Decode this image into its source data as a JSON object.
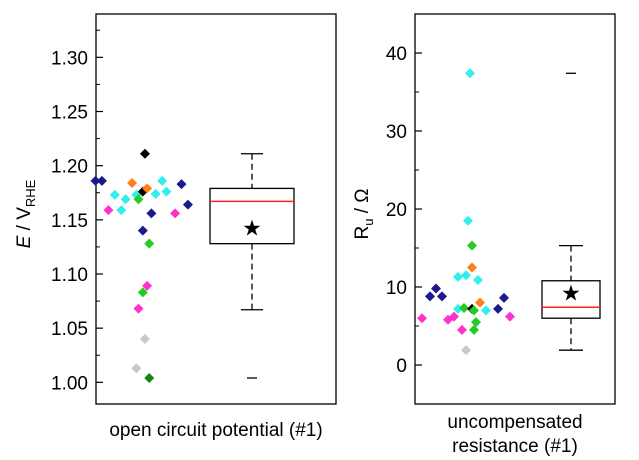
{
  "chart_data": [
    {
      "type": "scatter",
      "title": "",
      "xlabel": "open circuit potential (#1)",
      "ylabel": {
        "main": "E",
        "separator": " / V",
        "subscript": "RHE"
      },
      "ylim": [
        0.98,
        1.34
      ],
      "yticks": [
        1.0,
        1.05,
        1.1,
        1.15,
        1.2,
        1.25,
        1.3
      ],
      "ytick_labels": [
        "1.00",
        "1.05",
        "1.10",
        "1.15",
        "1.20",
        "1.25",
        "1.30"
      ],
      "grid": false,
      "points": [
        {
          "x": -0.3,
          "y": 1.186,
          "color": "#1a1a8c"
        },
        {
          "x": -0.27,
          "y": 1.186,
          "color": "#1a1a8c"
        },
        {
          "x": -0.24,
          "y": 1.159,
          "color": "#ff33cc"
        },
        {
          "x": -0.21,
          "y": 1.173,
          "color": "#33eeee"
        },
        {
          "x": -0.18,
          "y": 1.159,
          "color": "#33eeee"
        },
        {
          "x": -0.16,
          "y": 1.169,
          "color": "#33eeee"
        },
        {
          "x": -0.13,
          "y": 1.184,
          "color": "#ff7f1a"
        },
        {
          "x": -0.11,
          "y": 1.173,
          "color": "#33eeee"
        },
        {
          "x": -0.1,
          "y": 1.169,
          "color": "#22cc22"
        },
        {
          "x": -0.08,
          "y": 1.176,
          "color": "#000000"
        },
        {
          "x": -0.07,
          "y": 1.211,
          "color": "#000000"
        },
        {
          "x": -0.06,
          "y": 1.179,
          "color": "#ff7f1a"
        },
        {
          "x": -0.08,
          "y": 1.14,
          "color": "#1a1a8c"
        },
        {
          "x": -0.04,
          "y": 1.156,
          "color": "#1a1a8c"
        },
        {
          "x": -0.02,
          "y": 1.174,
          "color": "#33eeee"
        },
        {
          "x": 0.01,
          "y": 1.186,
          "color": "#33eeee"
        },
        {
          "x": 0.03,
          "y": 1.176,
          "color": "#33eeee"
        },
        {
          "x": 0.07,
          "y": 1.156,
          "color": "#ff33cc"
        },
        {
          "x": 0.1,
          "y": 1.183,
          "color": "#1a1a8c"
        },
        {
          "x": 0.13,
          "y": 1.164,
          "color": "#1a1a8c"
        },
        {
          "x": -0.05,
          "y": 1.128,
          "color": "#22cc22"
        },
        {
          "x": -0.06,
          "y": 1.089,
          "color": "#ff33cc"
        },
        {
          "x": -0.08,
          "y": 1.083,
          "color": "#22cc22"
        },
        {
          "x": -0.1,
          "y": 1.068,
          "color": "#ff33cc"
        },
        {
          "x": -0.07,
          "y": 1.04,
          "color": "#c8c8c8"
        },
        {
          "x": -0.11,
          "y": 1.013,
          "color": "#c8c8c8"
        },
        {
          "x": -0.05,
          "y": 1.004,
          "color": "#118811"
        }
      ],
      "box": {
        "q1": 1.128,
        "median": 1.167,
        "q3": 1.179,
        "whisker_low": 1.067,
        "whisker_high": 1.211,
        "mean": 1.143,
        "outliers": [
          1.004
        ]
      }
    },
    {
      "type": "scatter",
      "title": "",
      "xlabel": [
        "uncompensated",
        "resistance (#1)"
      ],
      "ylabel": {
        "main": "R",
        "subscript": "u",
        "separator": " / ",
        "unit": "Ω"
      },
      "ylim": [
        -5,
        45
      ],
      "yticks": [
        0,
        10,
        20,
        30,
        40
      ],
      "ytick_labels": [
        "0",
        "10",
        "20",
        "30",
        "40"
      ],
      "grid": false,
      "points": [
        {
          "x": -0.3,
          "y": 6.0,
          "color": "#ff33cc"
        },
        {
          "x": -0.26,
          "y": 8.8,
          "color": "#1a1a8c"
        },
        {
          "x": -0.23,
          "y": 9.8,
          "color": "#1a1a8c"
        },
        {
          "x": -0.2,
          "y": 8.8,
          "color": "#1a1a8c"
        },
        {
          "x": -0.17,
          "y": 5.8,
          "color": "#ff33cc"
        },
        {
          "x": -0.14,
          "y": 6.2,
          "color": "#ff33cc"
        },
        {
          "x": -0.12,
          "y": 7.2,
          "color": "#33eeee"
        },
        {
          "x": -0.12,
          "y": 11.3,
          "color": "#33eeee"
        },
        {
          "x": -0.09,
          "y": 7.3,
          "color": "#22cc22"
        },
        {
          "x": -0.1,
          "y": 4.5,
          "color": "#ff33cc"
        },
        {
          "x": -0.08,
          "y": 1.9,
          "color": "#c8c8c8"
        },
        {
          "x": -0.08,
          "y": 11.5,
          "color": "#33eeee"
        },
        {
          "x": -0.07,
          "y": 18.5,
          "color": "#33eeee"
        },
        {
          "x": -0.06,
          "y": 37.4,
          "color": "#33eeee"
        },
        {
          "x": -0.05,
          "y": 15.3,
          "color": "#22cc22"
        },
        {
          "x": -0.05,
          "y": 12.5,
          "color": "#ff7f1a"
        },
        {
          "x": -0.05,
          "y": 7.2,
          "color": "#000000"
        },
        {
          "x": -0.04,
          "y": 4.5,
          "color": "#22cc22"
        },
        {
          "x": -0.04,
          "y": 7.0,
          "color": "#22cc22"
        },
        {
          "x": -0.02,
          "y": 10.9,
          "color": "#33eeee"
        },
        {
          "x": -0.03,
          "y": 5.5,
          "color": "#22cc22"
        },
        {
          "x": -0.01,
          "y": 8.0,
          "color": "#ff7f1a"
        },
        {
          "x": 0.02,
          "y": 7.0,
          "color": "#33eeee"
        },
        {
          "x": 0.08,
          "y": 7.2,
          "color": "#1a1a8c"
        },
        {
          "x": 0.11,
          "y": 8.6,
          "color": "#1a1a8c"
        },
        {
          "x": 0.14,
          "y": 6.2,
          "color": "#ff33cc"
        }
      ],
      "box": {
        "q1": 6.0,
        "median": 7.4,
        "q3": 10.8,
        "whisker_low": 1.9,
        "whisker_high": 15.3,
        "mean": 9.3,
        "outliers": [
          37.4
        ]
      }
    }
  ],
  "colors": {
    "median_line": "#ff2020",
    "axes": "#000000"
  }
}
